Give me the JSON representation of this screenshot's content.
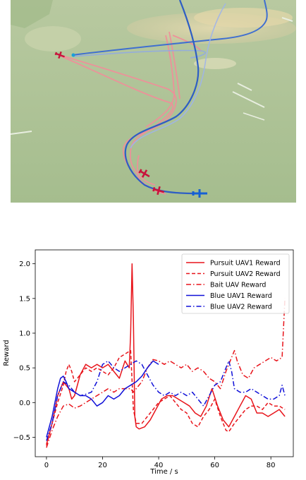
{
  "scene": {
    "colors": {
      "terrain": "#a9bf90",
      "sand": "#d8cfa6",
      "red_track": "#f08f9a",
      "blue_track": "#3f6fd0",
      "red_aircraft": "#c8143c",
      "blue_aircraft": "#1560d4"
    },
    "icons": [
      "red-fighter-icon",
      "red-fighter-icon",
      "red-fighter-icon",
      "blue-fighter-icon",
      "blue-fighter-icon"
    ]
  },
  "chart_data": {
    "type": "line",
    "xlabel": "Time / s",
    "ylabel": "Reward",
    "xlim": [
      -4,
      88
    ],
    "ylim": [
      -0.78,
      2.2
    ],
    "xticks": [
      0,
      20,
      40,
      60,
      80
    ],
    "yticks": [
      -0.5,
      0.0,
      0.5,
      1.0,
      1.5,
      2.0
    ],
    "xtick_labels": [
      "0",
      "20",
      "40",
      "60",
      "80"
    ],
    "ytick_labels": [
      "−0.5",
      "0.0",
      "0.5",
      "1.0",
      "1.5",
      "2.0"
    ],
    "grid": false,
    "legend_position": "top-right",
    "series": [
      {
        "name": "Pursuit UAV1 Reward",
        "color": "#e8141b",
        "style": "solid",
        "points": [
          [
            0,
            -0.6
          ],
          [
            2,
            -0.3
          ],
          [
            4,
            0.1
          ],
          [
            6,
            0.3
          ],
          [
            8,
            0.2
          ],
          [
            9,
            0.05
          ],
          [
            10,
            0.1
          ],
          [
            12,
            0.4
          ],
          [
            14,
            0.55
          ],
          [
            16,
            0.5
          ],
          [
            18,
            0.55
          ],
          [
            20,
            0.5
          ],
          [
            22,
            0.55
          ],
          [
            24,
            0.45
          ],
          [
            26,
            0.35
          ],
          [
            28,
            0.6
          ],
          [
            29.5,
            0.5
          ],
          [
            30,
            1.0
          ],
          [
            30.5,
            2.0
          ],
          [
            31,
            1.2
          ],
          [
            31.5,
            -0.2
          ],
          [
            32,
            -0.35
          ],
          [
            33,
            -0.38
          ],
          [
            35,
            -0.35
          ],
          [
            37,
            -0.25
          ],
          [
            39,
            -0.1
          ],
          [
            41,
            0.05
          ],
          [
            43,
            0.1
          ],
          [
            45,
            0.1
          ],
          [
            47,
            0.05
          ],
          [
            49,
            0.0
          ],
          [
            51,
            -0.05
          ],
          [
            53,
            -0.15
          ],
          [
            55,
            -0.2
          ],
          [
            57,
            -0.05
          ],
          [
            59,
            0.2
          ],
          [
            61,
            -0.05
          ],
          [
            63,
            -0.25
          ],
          [
            65,
            -0.35
          ],
          [
            67,
            -0.2
          ],
          [
            69,
            -0.05
          ],
          [
            71,
            0.1
          ],
          [
            73,
            0.05
          ],
          [
            75,
            -0.15
          ],
          [
            77,
            -0.15
          ],
          [
            79,
            -0.2
          ],
          [
            81,
            -0.15
          ],
          [
            83,
            -0.1
          ],
          [
            85,
            -0.2
          ]
        ]
      },
      {
        "name": "Pursuit UAV2 Reward",
        "color": "#e8141b",
        "style": "dash",
        "points": [
          [
            0,
            -0.62
          ],
          [
            2,
            -0.3
          ],
          [
            4,
            0.0
          ],
          [
            6,
            0.25
          ],
          [
            7,
            0.45
          ],
          [
            8,
            0.55
          ],
          [
            9,
            0.45
          ],
          [
            10,
            0.3
          ],
          [
            12,
            0.4
          ],
          [
            14,
            0.5
          ],
          [
            16,
            0.45
          ],
          [
            18,
            0.5
          ],
          [
            20,
            0.45
          ],
          [
            22,
            0.4
          ],
          [
            24,
            0.5
          ],
          [
            26,
            0.65
          ],
          [
            28,
            0.7
          ],
          [
            30,
            0.75
          ],
          [
            31,
            -0.1
          ],
          [
            32,
            -0.3
          ],
          [
            34,
            -0.3
          ],
          [
            36,
            -0.2
          ],
          [
            38,
            -0.1
          ],
          [
            40,
            0.0
          ],
          [
            42,
            0.05
          ],
          [
            44,
            0.1
          ],
          [
            46,
            0.0
          ],
          [
            48,
            -0.1
          ],
          [
            50,
            -0.15
          ],
          [
            52,
            -0.3
          ],
          [
            54,
            -0.35
          ],
          [
            56,
            -0.2
          ],
          [
            58,
            -0.1
          ],
          [
            60,
            0.05
          ],
          [
            62,
            -0.2
          ],
          [
            64,
            -0.4
          ],
          [
            65,
            -0.42
          ],
          [
            67,
            -0.3
          ],
          [
            69,
            -0.2
          ],
          [
            71,
            -0.1
          ],
          [
            73,
            -0.05
          ],
          [
            75,
            -0.05
          ],
          [
            77,
            -0.1
          ],
          [
            79,
            0.0
          ],
          [
            81,
            -0.05
          ],
          [
            83,
            -0.05
          ],
          [
            85,
            -0.1
          ]
        ]
      },
      {
        "name": "Bait UAV Reward",
        "color": "#e8141b",
        "style": "dashdot",
        "points": [
          [
            0,
            -0.65
          ],
          [
            2,
            -0.4
          ],
          [
            4,
            -0.2
          ],
          [
            6,
            -0.05
          ],
          [
            8,
            -0.02
          ],
          [
            10,
            -0.08
          ],
          [
            12,
            -0.05
          ],
          [
            14,
            0.0
          ],
          [
            16,
            0.05
          ],
          [
            18,
            0.1
          ],
          [
            20,
            0.15
          ],
          [
            22,
            0.2
          ],
          [
            24,
            0.15
          ],
          [
            26,
            0.2
          ],
          [
            28,
            0.2
          ],
          [
            30,
            0.2
          ],
          [
            31,
            0.15
          ],
          [
            32,
            0.2
          ],
          [
            34,
            0.3
          ],
          [
            36,
            0.5
          ],
          [
            38,
            0.62
          ],
          [
            40,
            0.6
          ],
          [
            42,
            0.55
          ],
          [
            44,
            0.6
          ],
          [
            46,
            0.55
          ],
          [
            48,
            0.5
          ],
          [
            50,
            0.55
          ],
          [
            52,
            0.45
          ],
          [
            54,
            0.5
          ],
          [
            56,
            0.45
          ],
          [
            58,
            0.35
          ],
          [
            60,
            0.3
          ],
          [
            62,
            0.2
          ],
          [
            64,
            0.45
          ],
          [
            66,
            0.65
          ],
          [
            67,
            0.75
          ],
          [
            68,
            0.6
          ],
          [
            70,
            0.4
          ],
          [
            72,
            0.35
          ],
          [
            74,
            0.5
          ],
          [
            76,
            0.55
          ],
          [
            78,
            0.6
          ],
          [
            80,
            0.65
          ],
          [
            82,
            0.6
          ],
          [
            84,
            0.65
          ],
          [
            85,
            1.5
          ]
        ]
      },
      {
        "name": "Blue UAV1 Reward",
        "color": "#1010d8",
        "style": "solid",
        "points": [
          [
            0,
            -0.5
          ],
          [
            2,
            -0.2
          ],
          [
            4,
            0.2
          ],
          [
            5,
            0.35
          ],
          [
            6,
            0.38
          ],
          [
            7,
            0.3
          ],
          [
            8,
            0.2
          ],
          [
            10,
            0.15
          ],
          [
            12,
            0.1
          ],
          [
            14,
            0.1
          ],
          [
            16,
            0.05
          ],
          [
            18,
            -0.05
          ],
          [
            20,
            0.0
          ],
          [
            22,
            0.1
          ],
          [
            24,
            0.05
          ],
          [
            26,
            0.1
          ],
          [
            28,
            0.2
          ],
          [
            30,
            0.25
          ],
          [
            32,
            0.3
          ],
          [
            34,
            0.38
          ],
          [
            36,
            0.5
          ],
          [
            38,
            0.6
          ],
          [
            40,
            0.55
          ]
        ]
      },
      {
        "name": "Blue UAV2 Reward",
        "color": "#1010d8",
        "style": "dashdot",
        "points": [
          [
            0,
            -0.55
          ],
          [
            2,
            -0.3
          ],
          [
            4,
            0.1
          ],
          [
            6,
            0.3
          ],
          [
            8,
            0.25
          ],
          [
            10,
            0.15
          ],
          [
            12,
            0.1
          ],
          [
            14,
            0.12
          ],
          [
            16,
            0.15
          ],
          [
            18,
            0.3
          ],
          [
            20,
            0.55
          ],
          [
            22,
            0.6
          ],
          [
            24,
            0.5
          ],
          [
            26,
            0.45
          ],
          [
            28,
            0.5
          ],
          [
            30,
            0.55
          ],
          [
            32,
            0.6
          ],
          [
            34,
            0.55
          ],
          [
            36,
            0.4
          ],
          [
            38,
            0.25
          ],
          [
            40,
            0.15
          ],
          [
            42,
            0.1
          ],
          [
            44,
            0.15
          ],
          [
            46,
            0.1
          ],
          [
            48,
            0.15
          ],
          [
            50,
            0.1
          ],
          [
            52,
            0.15
          ],
          [
            54,
            0.05
          ],
          [
            56,
            -0.05
          ],
          [
            58,
            0.1
          ],
          [
            60,
            0.25
          ],
          [
            62,
            0.3
          ],
          [
            64,
            0.5
          ],
          [
            65,
            0.6
          ],
          [
            66,
            0.45
          ],
          [
            67,
            0.2
          ],
          [
            69,
            0.15
          ],
          [
            71,
            0.15
          ],
          [
            73,
            0.2
          ],
          [
            75,
            0.15
          ],
          [
            77,
            0.1
          ],
          [
            79,
            0.05
          ],
          [
            81,
            0.05
          ],
          [
            83,
            0.1
          ],
          [
            84,
            0.25
          ],
          [
            85,
            0.1
          ]
        ]
      }
    ]
  }
}
